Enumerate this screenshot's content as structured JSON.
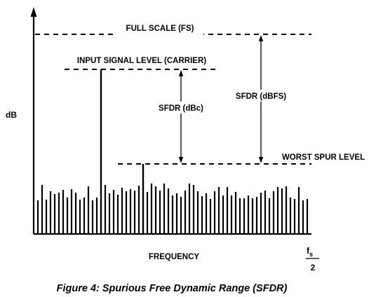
{
  "diagram": {
    "y_axis_label": "dB",
    "x_axis_label": "FREQUENCY",
    "x_end_label_numerator": "f",
    "x_end_label_subscript": "s",
    "x_end_label_denominator": "2",
    "full_scale_label": "FULL SCALE (FS)",
    "input_level_label": "INPUT SIGNAL LEVEL (CARRIER)",
    "sfdr_dbc_label": "SFDR (dBc)",
    "sfdr_dbfs_label": "SFDR (dBFS)",
    "worst_spur_label": "WORST SPUR LEVEL"
  },
  "caption": "Figure 4: Spurious Free Dynamic Range (SFDR)",
  "colors": {
    "ink": "#000000",
    "background": "#ffffff"
  }
}
